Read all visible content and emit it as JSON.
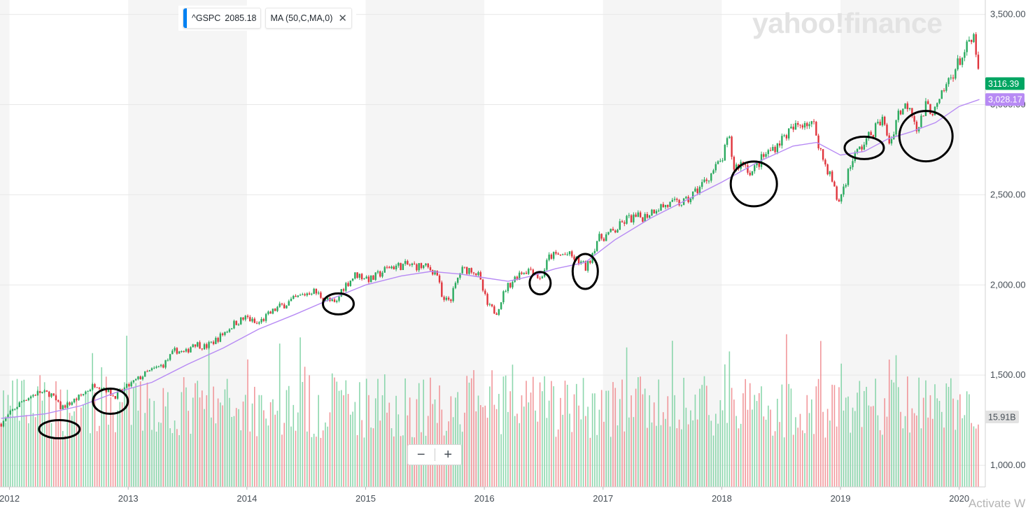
{
  "legend": {
    "symbol": "^GSPC",
    "value": "2085.18",
    "indicator": "MA (50,C,MA,0)",
    "close_icon": "close-icon"
  },
  "watermark": "yahoo!finance",
  "zoom": {
    "minus": "−",
    "plus": "+"
  },
  "os_overlay": "Activate W",
  "chart_data": {
    "type": "candlestick",
    "instrument": "^GSPC",
    "x_axis": {
      "ticks": [
        "2012",
        "2013",
        "2014",
        "2015",
        "2016",
        "2017",
        "2018",
        "2019",
        "2020"
      ],
      "range": [
        2011.92,
        2020.22
      ]
    },
    "y_axis": {
      "ticks": [
        "1,000.00",
        "1,500.00",
        "2,000.00",
        "2,500.00",
        "3,000.00",
        "3,500.00"
      ],
      "range": [
        880,
        3580
      ]
    },
    "grid": true,
    "alternating_year_bands": true,
    "price_markers": [
      {
        "label": "3116.39",
        "value": 3116.39,
        "color": "#00a562"
      },
      {
        "label": "3,028.17",
        "value": 3028.17,
        "color": "#b78af4"
      }
    ],
    "volume_marker": {
      "label": "15.91B"
    },
    "price_path": [
      [
        2011.93,
        1230
      ],
      [
        2012.02,
        1300
      ],
      [
        2012.12,
        1365
      ],
      [
        2012.25,
        1405
      ],
      [
        2012.35,
        1395
      ],
      [
        2012.43,
        1320
      ],
      [
        2012.5,
        1340
      ],
      [
        2012.6,
        1385
      ],
      [
        2012.72,
        1450
      ],
      [
        2012.8,
        1430
      ],
      [
        2012.88,
        1380
      ],
      [
        2013.0,
        1440
      ],
      [
        2013.15,
        1510
      ],
      [
        2013.3,
        1560
      ],
      [
        2013.4,
        1640
      ],
      [
        2013.48,
        1620
      ],
      [
        2013.55,
        1680
      ],
      [
        2013.65,
        1655
      ],
      [
        2013.75,
        1700
      ],
      [
        2013.9,
        1790
      ],
      [
        2014.0,
        1820
      ],
      [
        2014.08,
        1780
      ],
      [
        2014.25,
        1870
      ],
      [
        2014.4,
        1920
      ],
      [
        2014.55,
        1970
      ],
      [
        2014.62,
        1940
      ],
      [
        2014.75,
        1890
      ],
      [
        2014.8,
        1980
      ],
      [
        2014.92,
        2060
      ],
      [
        2015.05,
        2030
      ],
      [
        2015.2,
        2100
      ],
      [
        2015.35,
        2110
      ],
      [
        2015.5,
        2100
      ],
      [
        2015.6,
        2070
      ],
      [
        2015.65,
        1900
      ],
      [
        2015.72,
        1930
      ],
      [
        2015.8,
        2080
      ],
      [
        2015.9,
        2090
      ],
      [
        2015.95,
        2050
      ],
      [
        2016.03,
        1880
      ],
      [
        2016.1,
        1850
      ],
      [
        2016.18,
        1980
      ],
      [
        2016.3,
        2070
      ],
      [
        2016.4,
        2090
      ],
      [
        2016.47,
        2030
      ],
      [
        2016.55,
        2160
      ],
      [
        2016.7,
        2170
      ],
      [
        2016.82,
        2120
      ],
      [
        2016.86,
        2090
      ],
      [
        2016.95,
        2250
      ],
      [
        2017.1,
        2300
      ],
      [
        2017.2,
        2365
      ],
      [
        2017.35,
        2380
      ],
      [
        2017.45,
        2430
      ],
      [
        2017.6,
        2450
      ],
      [
        2017.7,
        2460
      ],
      [
        2017.85,
        2570
      ],
      [
        2018.0,
        2690
      ],
      [
        2018.06,
        2820
      ],
      [
        2018.1,
        2650
      ],
      [
        2018.18,
        2680
      ],
      [
        2018.25,
        2620
      ],
      [
        2018.35,
        2710
      ],
      [
        2018.45,
        2770
      ],
      [
        2018.55,
        2840
      ],
      [
        2018.7,
        2910
      ],
      [
        2018.78,
        2880
      ],
      [
        2018.85,
        2700
      ],
      [
        2018.92,
        2600
      ],
      [
        2018.98,
        2450
      ],
      [
        2019.02,
        2530
      ],
      [
        2019.1,
        2700
      ],
      [
        2019.25,
        2830
      ],
      [
        2019.35,
        2920
      ],
      [
        2019.42,
        2780
      ],
      [
        2019.48,
        2950
      ],
      [
        2019.58,
        3010
      ],
      [
        2019.65,
        2860
      ],
      [
        2019.72,
        2990
      ],
      [
        2019.8,
        2960
      ],
      [
        2019.9,
        3120
      ],
      [
        2020.0,
        3240
      ],
      [
        2020.08,
        3330
      ],
      [
        2020.13,
        3370
      ],
      [
        2020.16,
        3180
      ],
      [
        2020.17,
        3116.39
      ]
    ],
    "ma_path": [
      [
        2011.93,
        1260
      ],
      [
        2012.3,
        1285
      ],
      [
        2012.6,
        1330
      ],
      [
        2012.9,
        1405
      ],
      [
        2013.2,
        1460
      ],
      [
        2013.5,
        1560
      ],
      [
        2013.8,
        1650
      ],
      [
        2014.1,
        1755
      ],
      [
        2014.4,
        1835
      ],
      [
        2014.7,
        1920
      ],
      [
        2015.0,
        2000
      ],
      [
        2015.3,
        2050
      ],
      [
        2015.55,
        2075
      ],
      [
        2015.8,
        2060
      ],
      [
        2016.0,
        2040
      ],
      [
        2016.2,
        2020
      ],
      [
        2016.4,
        2050
      ],
      [
        2016.6,
        2090
      ],
      [
        2016.85,
        2125
      ],
      [
        2017.1,
        2250
      ],
      [
        2017.4,
        2370
      ],
      [
        2017.7,
        2470
      ],
      [
        2018.0,
        2570
      ],
      [
        2018.3,
        2680
      ],
      [
        2018.6,
        2770
      ],
      [
        2018.8,
        2790
      ],
      [
        2019.0,
        2720
      ],
      [
        2019.2,
        2740
      ],
      [
        2019.4,
        2810
      ],
      [
        2019.6,
        2850
      ],
      [
        2019.8,
        2900
      ],
      [
        2020.0,
        2990
      ],
      [
        2020.17,
        3028.17
      ]
    ],
    "annotation_circles": [
      {
        "x": 2012.42,
        "y": 1200,
        "rx": 29,
        "ry": 13
      },
      {
        "x": 2012.85,
        "y": 1355,
        "rx": 25,
        "ry": 18
      },
      {
        "x": 2014.77,
        "y": 1895,
        "rx": 22,
        "ry": 15
      },
      {
        "x": 2016.47,
        "y": 2010,
        "rx": 15,
        "ry": 16
      },
      {
        "x": 2016.85,
        "y": 2075,
        "rx": 18,
        "ry": 25
      },
      {
        "x": 2018.27,
        "y": 2560,
        "rx": 33,
        "ry": 32
      },
      {
        "x": 2019.2,
        "y": 2760,
        "rx": 28,
        "ry": 16
      },
      {
        "x": 2019.72,
        "y": 2825,
        "rx": 38,
        "ry": 36
      }
    ]
  }
}
